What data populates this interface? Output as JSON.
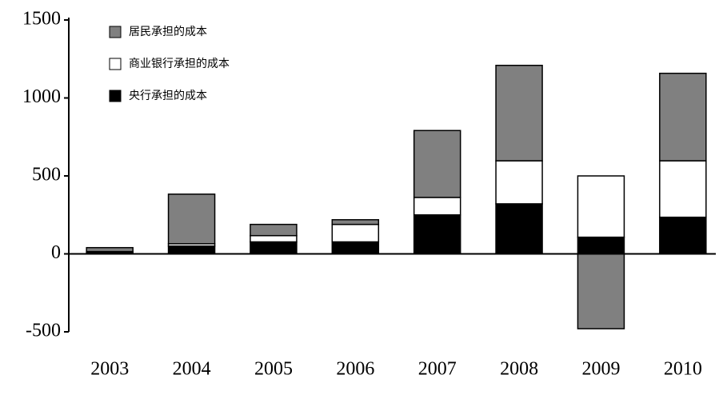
{
  "chart_data": {
    "type": "stacked_bar",
    "categories": [
      "2003",
      "2004",
      "2005",
      "2006",
      "2007",
      "2008",
      "2009",
      "2010"
    ],
    "series": [
      {
        "name": "居民承担的成本",
        "color": "#808080",
        "values": [
          25,
          318,
          72,
          30,
          429,
          612,
          -480,
          561
        ]
      },
      {
        "name": "商业银行承担的成本",
        "color": "#ffffff",
        "values": [
          5,
          15,
          40,
          112,
          112,
          276,
          393,
          362
        ]
      },
      {
        "name": "央行承担的成本",
        "color": "#000000",
        "values": [
          10,
          50,
          77,
          77,
          250,
          321,
          107,
          235
        ]
      }
    ],
    "ylim": [
      -500,
      1500
    ],
    "yticks": [
      -500,
      0,
      500,
      1000,
      1500
    ],
    "legend": "top-left"
  }
}
